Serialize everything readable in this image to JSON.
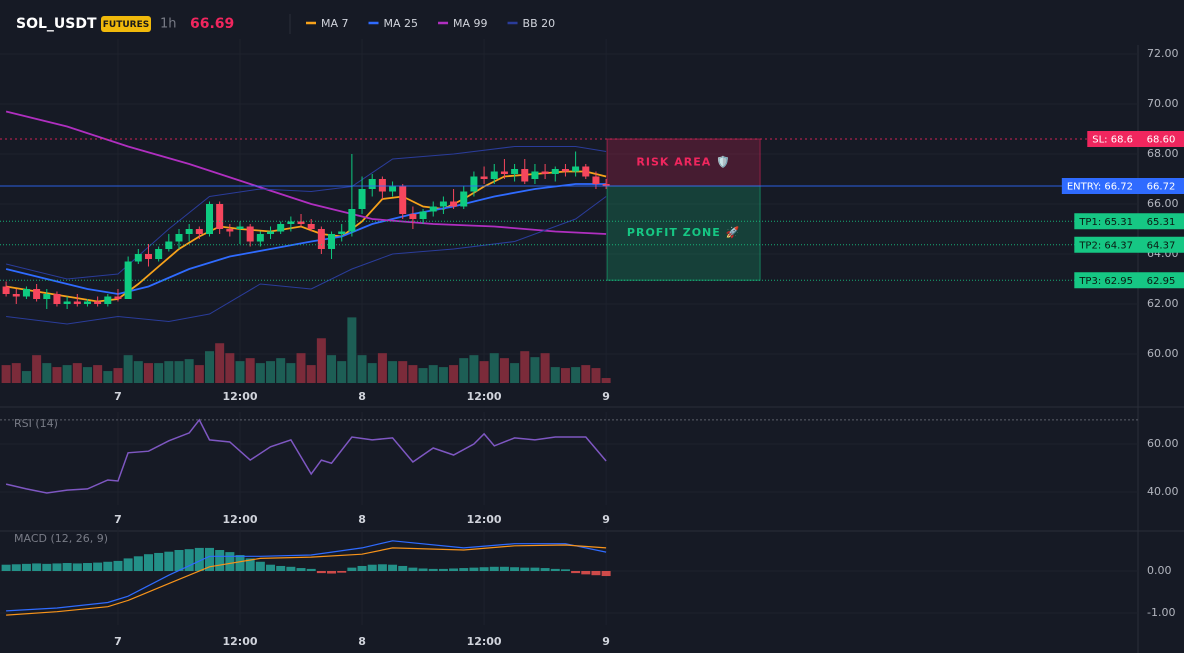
{
  "header": {
    "symbol": "SOL_USDT",
    "badge": "FUTURES",
    "interval": "1h",
    "price": 66.69
  },
  "chart_data": [
    {
      "type": "candlestick",
      "xlim": [
        -0.6,
        111.3
      ],
      "xticks": [
        {
          "value": 11,
          "label": "7"
        },
        {
          "value": 23,
          "label": "12:00"
        },
        {
          "value": 35,
          "label": "8"
        },
        {
          "value": 47,
          "label": "12:00"
        },
        {
          "value": 59,
          "label": "9"
        }
      ],
      "ylim": [
        58.84,
        72.36
      ],
      "yticks": [
        {
          "value": 60,
          "label": "60.00"
        },
        {
          "value": 62,
          "label": "62.00"
        },
        {
          "value": 64,
          "label": "64.00"
        },
        {
          "value": 66,
          "label": "66.00"
        },
        {
          "value": 68,
          "label": "68.00"
        },
        {
          "value": 70,
          "label": "70.00"
        },
        {
          "value": 72,
          "label": "72.00"
        }
      ],
      "up_color": "#0ecb81",
      "down_color": "#f6465d",
      "ohlc": [
        [
          62.7,
          62.9,
          62.3,
          62.4
        ],
        [
          62.4,
          62.6,
          62.0,
          62.3
        ],
        [
          62.3,
          62.7,
          62.2,
          62.6
        ],
        [
          62.6,
          62.8,
          62.1,
          62.2
        ],
        [
          62.2,
          62.6,
          61.8,
          62.4
        ],
        [
          62.4,
          62.5,
          61.9,
          62.0
        ],
        [
          62.0,
          62.3,
          61.8,
          62.1
        ],
        [
          62.1,
          62.4,
          61.9,
          62.0
        ],
        [
          62.0,
          62.2,
          61.9,
          62.1
        ],
        [
          62.1,
          62.3,
          61.9,
          62.0
        ],
        [
          62.0,
          62.4,
          61.9,
          62.3
        ],
        [
          62.3,
          62.6,
          62.1,
          62.2
        ],
        [
          62.2,
          63.9,
          62.2,
          63.7
        ],
        [
          63.7,
          64.2,
          63.6,
          64.0
        ],
        [
          64.0,
          64.4,
          63.5,
          63.8
        ],
        [
          63.8,
          64.3,
          63.7,
          64.2
        ],
        [
          64.2,
          64.8,
          64.1,
          64.5
        ],
        [
          64.5,
          65.0,
          64.2,
          64.8
        ],
        [
          64.8,
          65.2,
          64.5,
          65.0
        ],
        [
          65.0,
          65.1,
          64.6,
          64.8
        ],
        [
          64.8,
          66.1,
          64.7,
          66.0
        ],
        [
          66.0,
          66.1,
          64.8,
          65.0
        ],
        [
          65.0,
          65.2,
          64.7,
          64.9
        ],
        [
          65.0,
          65.3,
          64.4,
          65.1
        ],
        [
          65.1,
          65.2,
          64.3,
          64.5
        ],
        [
          64.5,
          64.9,
          64.3,
          64.8
        ],
        [
          64.8,
          65.1,
          64.6,
          64.9
        ],
        [
          64.9,
          65.3,
          64.8,
          65.2
        ],
        [
          65.2,
          65.5,
          64.9,
          65.3
        ],
        [
          65.3,
          65.6,
          65.1,
          65.2
        ],
        [
          65.2,
          65.4,
          64.9,
          65.0
        ],
        [
          65.0,
          65.1,
          64.0,
          64.2
        ],
        [
          64.2,
          64.9,
          63.8,
          64.8
        ],
        [
          64.8,
          65.2,
          64.5,
          64.9
        ],
        [
          64.9,
          68.0,
          64.7,
          65.8
        ],
        [
          65.8,
          67.1,
          65.6,
          66.6
        ],
        [
          66.6,
          67.2,
          66.3,
          67.0
        ],
        [
          67.0,
          67.1,
          66.2,
          66.5
        ],
        [
          66.5,
          66.9,
          66.3,
          66.7
        ],
        [
          66.7,
          66.8,
          65.4,
          65.6
        ],
        [
          65.6,
          65.9,
          65.0,
          65.4
        ],
        [
          65.4,
          65.8,
          65.2,
          65.7
        ],
        [
          65.7,
          66.1,
          65.5,
          65.9
        ],
        [
          65.9,
          66.3,
          65.6,
          66.1
        ],
        [
          66.1,
          66.6,
          65.8,
          65.9
        ],
        [
          65.9,
          66.7,
          65.8,
          66.5
        ],
        [
          66.5,
          67.3,
          66.3,
          67.1
        ],
        [
          67.1,
          67.5,
          66.8,
          67.0
        ],
        [
          67.0,
          67.6,
          66.8,
          67.3
        ],
        [
          67.3,
          67.8,
          67.0,
          67.2
        ],
        [
          67.2,
          67.6,
          66.9,
          67.4
        ],
        [
          67.4,
          67.8,
          66.8,
          66.9
        ],
        [
          67.0,
          67.6,
          66.8,
          67.3
        ],
        [
          67.3,
          67.6,
          67.0,
          67.2
        ],
        [
          67.2,
          67.5,
          66.9,
          67.4
        ],
        [
          67.4,
          67.6,
          67.1,
          67.3
        ],
        [
          67.3,
          68.1,
          67.1,
          67.5
        ],
        [
          67.5,
          67.6,
          67.0,
          67.1
        ],
        [
          67.1,
          67.3,
          66.6,
          66.8
        ],
        [
          66.8,
          67.0,
          66.6,
          66.7
        ]
      ],
      "y2lim": [
        0,
        340
      ],
      "volume": [
        18,
        20,
        12,
        28,
        20,
        16,
        18,
        20,
        16,
        18,
        12,
        15,
        28,
        22,
        20,
        20,
        22,
        22,
        24,
        18,
        32,
        40,
        30,
        22,
        25,
        20,
        22,
        25,
        20,
        30,
        18,
        45,
        28,
        22,
        66,
        28,
        20,
        30,
        22,
        22,
        18,
        15,
        18,
        16,
        18,
        25,
        28,
        22,
        30,
        25,
        20,
        32,
        26,
        30,
        16,
        15,
        16,
        18,
        15,
        5
      ],
      "volume_up_color": "#1d5e55",
      "volume_down_color": "#7b2b3a",
      "series": [
        {
          "name": "MA 7",
          "color": "#f7a21b",
          "x": [
            0,
            3,
            6,
            9,
            11,
            13,
            15,
            17,
            19,
            21,
            23,
            26,
            29,
            31,
            33,
            35,
            37,
            39,
            41,
            43,
            45,
            47,
            49,
            52,
            55,
            57,
            59
          ],
          "values": [
            62.7,
            62.5,
            62.3,
            62.1,
            62.2,
            62.8,
            63.5,
            64.2,
            64.7,
            65.1,
            65.0,
            64.9,
            65.1,
            64.8,
            64.7,
            65.3,
            66.2,
            66.3,
            65.9,
            65.8,
            66.2,
            66.7,
            67.1,
            67.2,
            67.3,
            67.3,
            67.1
          ]
        },
        {
          "name": "MA 25",
          "color": "#2f6bff",
          "x": [
            0,
            4,
            8,
            11,
            14,
            18,
            22,
            26,
            30,
            33,
            36,
            40,
            44,
            48,
            52,
            56,
            59
          ],
          "values": [
            63.4,
            63.0,
            62.6,
            62.4,
            62.7,
            63.4,
            63.9,
            64.2,
            64.5,
            64.7,
            65.2,
            65.6,
            65.9,
            66.3,
            66.6,
            66.8,
            66.8
          ]
        },
        {
          "name": "MA 99",
          "color": "#b02fc0",
          "x": [
            0,
            6,
            12,
            18,
            24,
            30,
            36,
            42,
            48,
            54,
            59
          ],
          "values": [
            69.7,
            69.1,
            68.3,
            67.6,
            66.8,
            66.0,
            65.4,
            65.2,
            65.1,
            64.9,
            64.8
          ]
        },
        {
          "name": "BB 20",
          "color": "#2a3c9a",
          "x": [
            0,
            6,
            11,
            16,
            20,
            25,
            30,
            34,
            38,
            44,
            50,
            56,
            59
          ],
          "values": [
            63.6,
            63.0,
            63.2,
            65.0,
            66.3,
            66.6,
            66.5,
            66.7,
            67.8,
            68.0,
            68.3,
            68.3,
            68.1
          ],
          "lower": [
            61.5,
            61.2,
            61.5,
            61.3,
            61.6,
            62.8,
            62.6,
            63.4,
            64.0,
            64.2,
            64.5,
            65.4,
            66.3
          ]
        }
      ],
      "levels": [
        {
          "label": "SL: 68.6",
          "value": 68.6,
          "price_label": "68.60",
          "color": "#f0265e",
          "style": "dashed"
        },
        {
          "label": "ENTRY: 66.72",
          "value": 66.72,
          "price_label": "66.72",
          "color": "#2f6bff",
          "style": "solid"
        },
        {
          "label": "TP1: 65.31",
          "value": 65.31,
          "price_label": "65.31",
          "color": "#16c784",
          "style": "dotted"
        },
        {
          "label": "TP2: 64.37",
          "value": 64.37,
          "price_label": "64.37",
          "color": "#16c784",
          "style": "dotted"
        },
        {
          "label": "TP3: 62.95",
          "value": 62.95,
          "price_label": "62.95",
          "color": "#16c784",
          "style": "dotted"
        }
      ],
      "zones": [
        {
          "label": "RISK AREA 🛡️",
          "range": [
            66.72,
            68.6
          ],
          "color": "#f0265e"
        },
        {
          "label": "PROFIT ZONE 🚀",
          "range": [
            62.95,
            66.72
          ],
          "color": "#16c784"
        }
      ]
    },
    {
      "type": "line",
      "title": "RSI (14)",
      "xlim": [
        -0.6,
        111.3
      ],
      "xticks": [
        {
          "value": 11,
          "label": "7"
        },
        {
          "value": 23,
          "label": "12:00"
        },
        {
          "value": 35,
          "label": "8"
        },
        {
          "value": 47,
          "label": "12:00"
        },
        {
          "value": 59,
          "label": "9"
        }
      ],
      "ylim": [
        34.6,
        70.8
      ],
      "yticks": [
        {
          "value": 40,
          "label": "40.00"
        },
        {
          "value": 60,
          "label": "60.00"
        }
      ],
      "hlines": [
        70
      ],
      "series": [
        {
          "color": "#7e57c2",
          "x": [
            0,
            2,
            4,
            6,
            8,
            10,
            11,
            12,
            14,
            16,
            18,
            19,
            20,
            22,
            24,
            26,
            28,
            30,
            31,
            32,
            34,
            36,
            38,
            40,
            42,
            44,
            46,
            47,
            48,
            50,
            52,
            54,
            56,
            57,
            59
          ],
          "values": [
            43.3,
            41.3,
            39.6,
            40.8,
            41.3,
            45,
            44.6,
            56.3,
            57,
            61.3,
            64.6,
            70,
            61.7,
            60.8,
            53.3,
            58.8,
            61.7,
            47.5,
            53.3,
            52,
            62.9,
            61.7,
            62.5,
            52.5,
            58.3,
            55.4,
            60,
            64.2,
            59.2,
            62.5,
            61.7,
            62.9,
            62.9,
            62.9,
            52.9
          ]
        }
      ]
    },
    {
      "type": "macd",
      "title": "MACD (12, 26, 9)",
      "xlim": [
        -0.6,
        111.3
      ],
      "xticks": [
        {
          "value": 11,
          "label": "7"
        },
        {
          "value": 23,
          "label": "12:00"
        },
        {
          "value": 35,
          "label": "8"
        },
        {
          "value": 47,
          "label": "12:00"
        },
        {
          "value": 59,
          "label": "9"
        }
      ],
      "ylim": [
        -1.286,
        0.905
      ],
      "yticks": [
        {
          "value": 0,
          "label": "0.00"
        },
        {
          "value": -1,
          "label": "-1.00"
        }
      ],
      "histogram": {
        "up_color": "#26a69a",
        "down_color": "#ef5350",
        "values": [
          0.15,
          0.16,
          0.17,
          0.18,
          0.17,
          0.18,
          0.19,
          0.18,
          0.19,
          0.2,
          0.22,
          0.24,
          0.3,
          0.35,
          0.4,
          0.43,
          0.46,
          0.5,
          0.52,
          0.55,
          0.55,
          0.5,
          0.45,
          0.38,
          0.3,
          0.22,
          0.15,
          0.12,
          0.1,
          0.07,
          0.05,
          -0.05,
          -0.06,
          -0.04,
          0.08,
          0.12,
          0.15,
          0.16,
          0.15,
          0.12,
          0.08,
          0.06,
          0.05,
          0.05,
          0.06,
          0.07,
          0.08,
          0.09,
          0.1,
          0.1,
          0.09,
          0.08,
          0.08,
          0.07,
          0.05,
          0.04,
          -0.05,
          -0.08,
          -0.1,
          -0.12
        ]
      },
      "series": [
        {
          "color": "#2f6bff",
          "x": [
            0,
            5,
            10,
            12,
            16,
            20,
            25,
            30,
            35,
            38,
            45,
            50,
            55,
            59
          ],
          "values": [
            -0.95,
            -0.88,
            -0.75,
            -0.6,
            -0.1,
            0.35,
            0.35,
            0.38,
            0.55,
            0.72,
            0.55,
            0.65,
            0.65,
            0.45
          ]
        },
        {
          "color": "#f7931a",
          "x": [
            0,
            5,
            10,
            12,
            16,
            20,
            25,
            30,
            35,
            38,
            45,
            50,
            55,
            59
          ],
          "values": [
            -1.05,
            -0.97,
            -0.85,
            -0.7,
            -0.3,
            0.1,
            0.3,
            0.33,
            0.4,
            0.55,
            0.5,
            0.6,
            0.62,
            0.55
          ]
        }
      ]
    }
  ]
}
